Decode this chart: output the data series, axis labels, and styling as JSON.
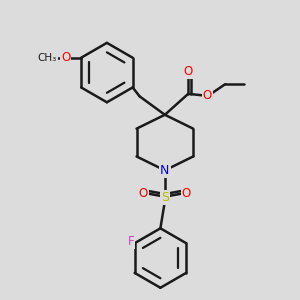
{
  "background_color": "#dcdcdc",
  "bond_color": "#1a1a1a",
  "atom_colors": {
    "O": "#ff0000",
    "N": "#0000ee",
    "S": "#bbbb00",
    "F": "#cc44cc"
  },
  "bond_width": 1.8,
  "figsize": [
    3.0,
    3.0
  ],
  "dpi": 100,
  "font_size": 8.5
}
